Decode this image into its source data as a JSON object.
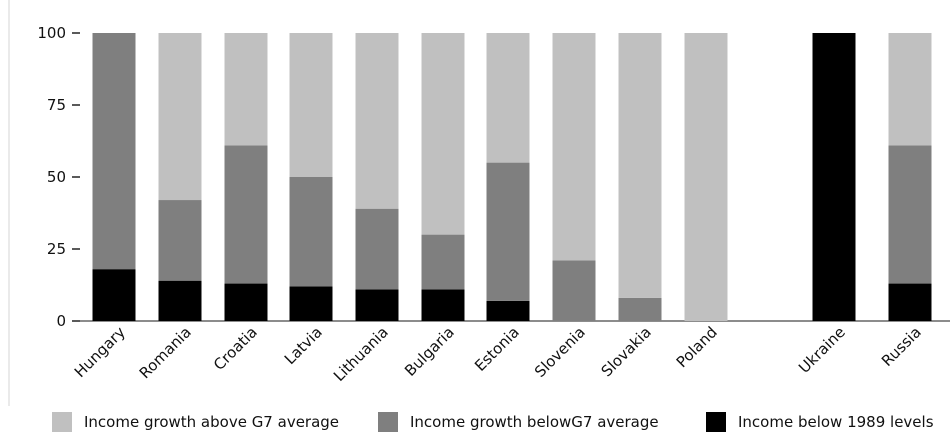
{
  "chart_data": {
    "type": "bar",
    "stacked": true,
    "categories": [
      "Hungary",
      "Romania",
      "Croatia",
      "Latvia",
      "Lithuania",
      "Bulgaria",
      "Estonia",
      "Slovenia",
      "Slovakia",
      "Poland",
      "Ukraine",
      "Russia"
    ],
    "series": [
      {
        "name": "Income below 1989 levels",
        "color": "#000000",
        "values": [
          18,
          14,
          13,
          12,
          11,
          11,
          7,
          0,
          0,
          0,
          100,
          13
        ]
      },
      {
        "name": "Income growth belowG7 average",
        "color": "#7f7f7f",
        "values": [
          82,
          28,
          48,
          38,
          28,
          19,
          48,
          21,
          8,
          0,
          0,
          48
        ]
      },
      {
        "name": "Income growth above G7 average",
        "color": "#c0c0c0",
        "values": [
          0,
          58,
          39,
          50,
          61,
          70,
          45,
          79,
          92,
          100,
          0,
          39
        ]
      }
    ],
    "ylim": [
      0,
      100
    ],
    "yticks": [
      0,
      25,
      50,
      75,
      100
    ],
    "legend_position": "bottom",
    "legend_order": [
      "Income growth above G7 average",
      "Income growth belowG7 average",
      "Income below 1989 levels"
    ],
    "grid": false
  }
}
